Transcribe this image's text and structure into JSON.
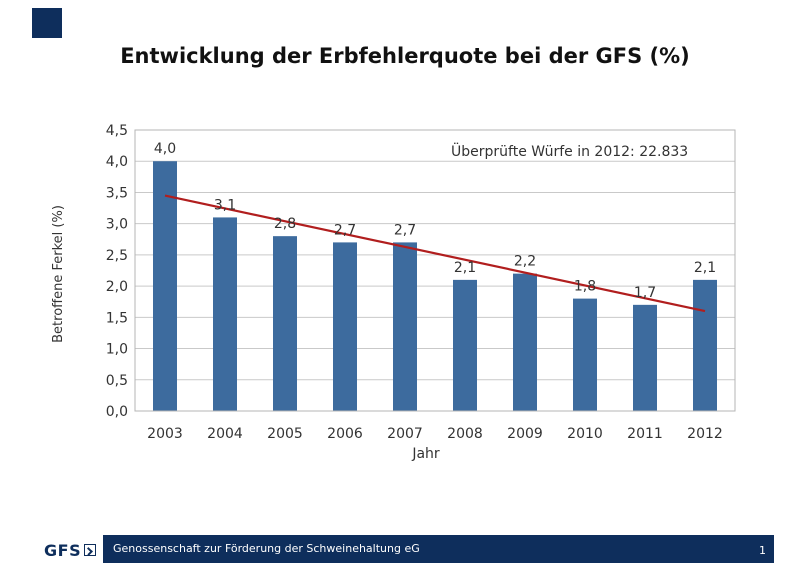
{
  "title": "Entwicklung der Erbfehlerquote bei der GFS (%)",
  "chart_data": {
    "type": "bar",
    "categories": [
      "2003",
      "2004",
      "2005",
      "2006",
      "2007",
      "2008",
      "2009",
      "2010",
      "2011",
      "2012"
    ],
    "values": [
      4.0,
      3.1,
      2.8,
      2.7,
      2.7,
      2.1,
      2.2,
      1.8,
      1.7,
      2.1
    ],
    "data_labels": [
      "4,0",
      "3,1",
      "2,8",
      "2,7",
      "2,7",
      "2,1",
      "2,2",
      "1,8",
      "1,7",
      "2,1"
    ],
    "ylim": [
      0,
      4.5
    ],
    "yticks": [
      "0,0",
      "0,5",
      "1,0",
      "1,5",
      "2,0",
      "2,5",
      "3,0",
      "3,5",
      "4,0",
      "4,5"
    ],
    "xlabel": "Jahr",
    "ylabel": "Betroffene Ferkel (%)",
    "annotation": "Überprüfte Würfe in 2012: 22.833",
    "trendline": {
      "start": 3.45,
      "end": 1.6
    },
    "grid": true,
    "colors": {
      "bar": "#3d6b9e",
      "trend": "#b11e1e",
      "grid": "#c9c9c9"
    }
  },
  "footer": {
    "logo": "GFS",
    "text": "Genossenschaft zur Förderung der Schweinehaltung eG",
    "page_number": "1"
  }
}
